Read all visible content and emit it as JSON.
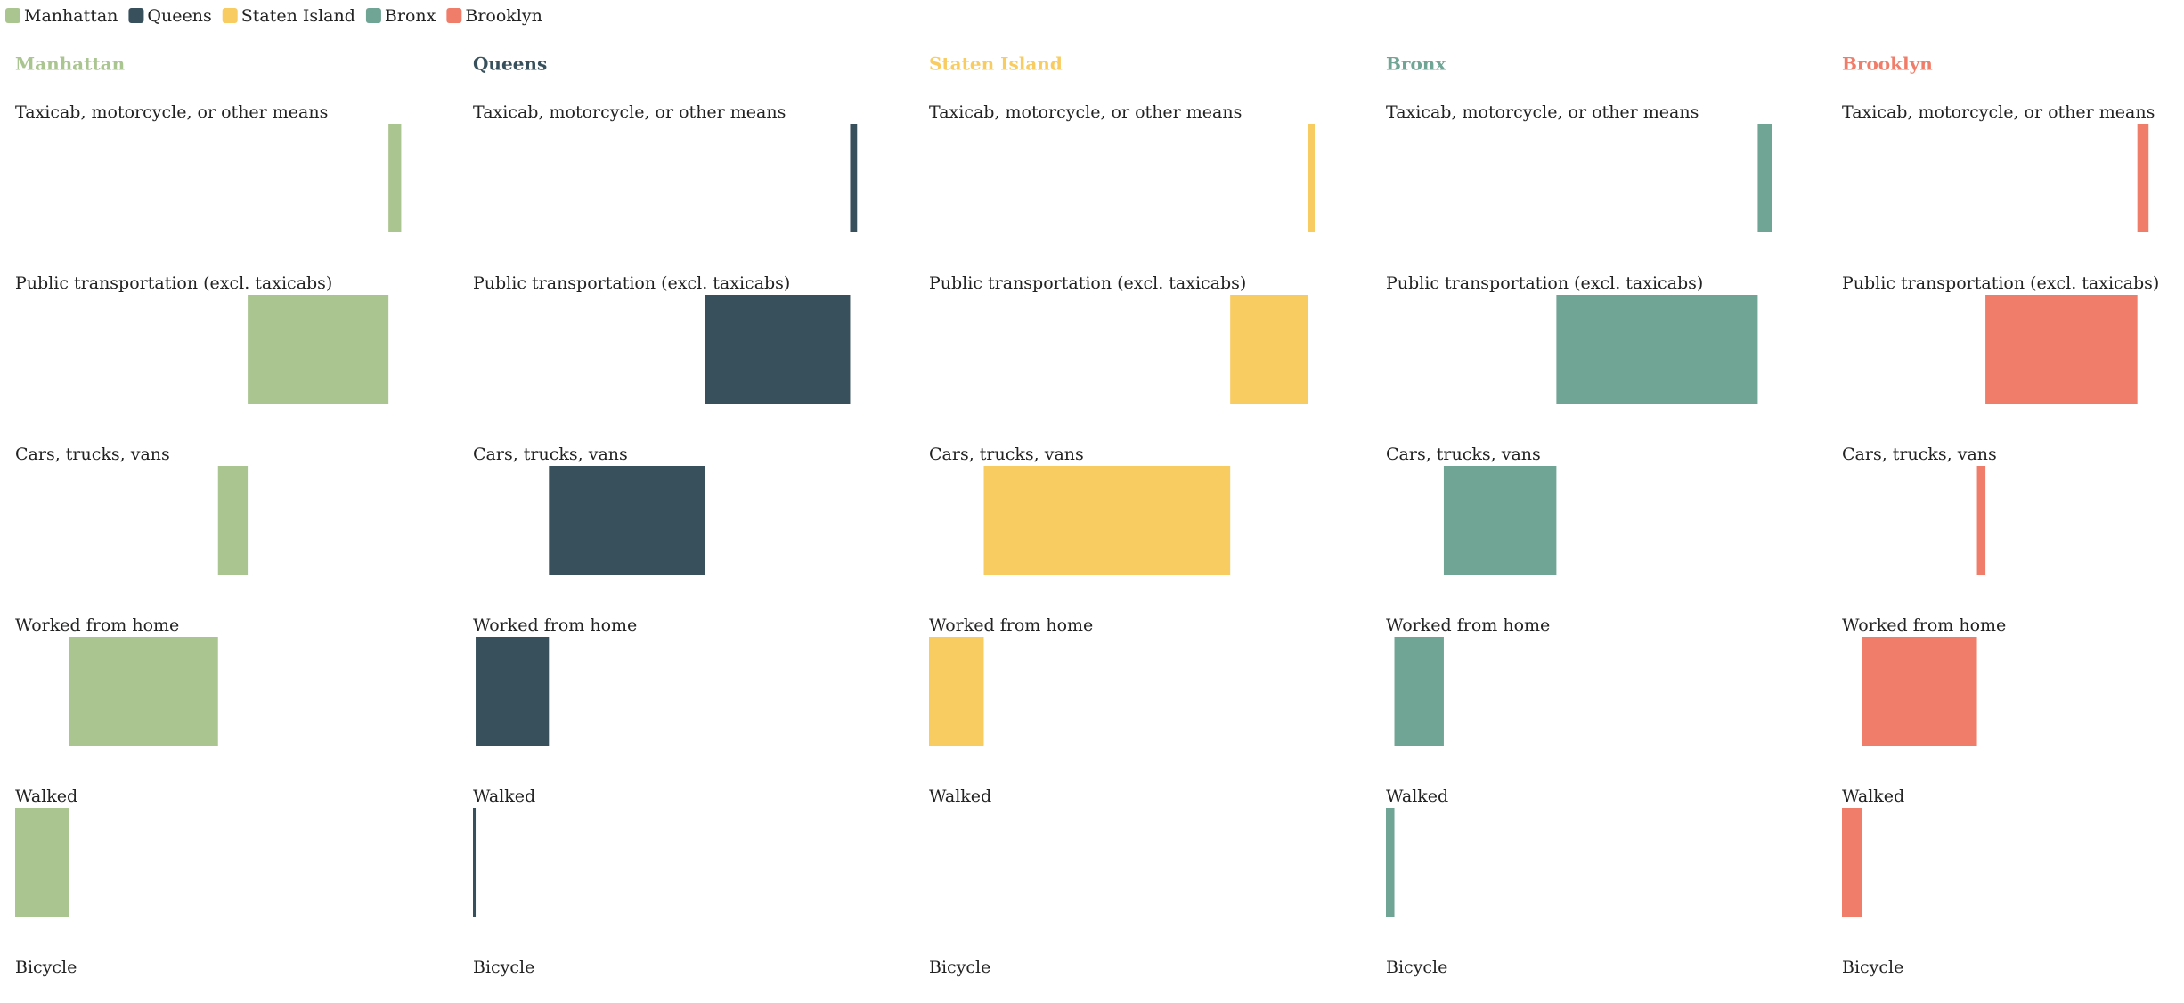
{
  "chart_data": {
    "type": "bar",
    "categories": [
      "Taxicab, motorcycle, or other means",
      "Public transportation (excl. taxicabs)",
      "Cars, trucks, vans",
      "Worked from home",
      "Walked",
      "Bicycle"
    ],
    "series": [
      {
        "name": "Manhattan",
        "color": "#abc591",
        "values": [
          3.3,
          36.5,
          7.7,
          38.7,
          13.9,
          0
        ]
      },
      {
        "name": "Queens",
        "color": "#37505c",
        "values": [
          1.8,
          37.6,
          40.5,
          19.0,
          0.7,
          0
        ]
      },
      {
        "name": "Staten Island",
        "color": "#f9cc62",
        "values": [
          1.8,
          20.1,
          63.9,
          14.2,
          0,
          0
        ]
      },
      {
        "name": "Bronx",
        "color": "#70a494",
        "values": [
          3.6,
          52.2,
          29.2,
          12.8,
          2.2,
          0
        ]
      },
      {
        "name": "Brooklyn",
        "color": "#f07d6a",
        "values": [
          2.9,
          39.4,
          2.2,
          29.9,
          5.1,
          0
        ]
      }
    ],
    "legend": "top-left"
  }
}
